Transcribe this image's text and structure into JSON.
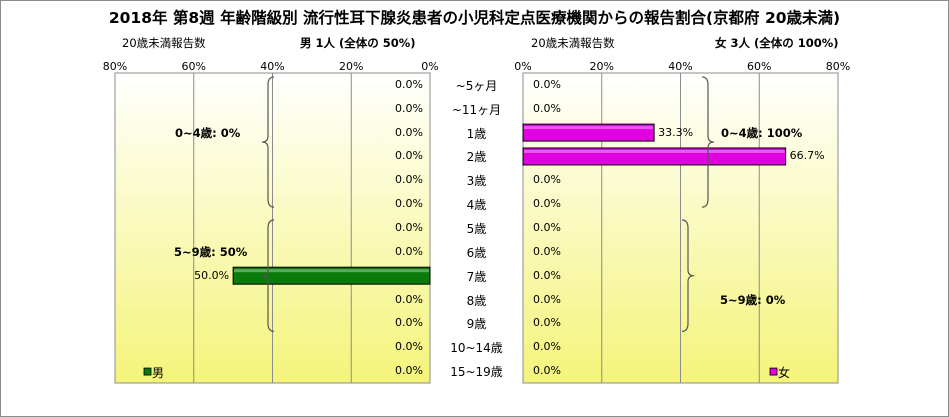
{
  "title": "2018年 第8週 年齢階級別 流行性耳下腺炎患者の小児科定点医療機関からの報告割合(京都府 20歳未満)",
  "colors": {
    "male": "#0a7a0a",
    "female": "#e000e0",
    "plot_bg_top": "#ffffff",
    "plot_bg_bottom": "#f4f47a",
    "frame": "#8c8c8c"
  },
  "chart_data": [
    {
      "type": "bar",
      "orientation": "horizontal",
      "subtitle_left": "20歳未満報告数",
      "subtitle_right": "男 1人 (全体の 50%)",
      "categories": [
        "~5ヶ月",
        "~11ヶ月",
        "1歳",
        "2歳",
        "3歳",
        "4歳",
        "5歳",
        "6歳",
        "7歳",
        "8歳",
        "9歳",
        "10~14歳",
        "15~19歳"
      ],
      "series": [
        {
          "name": "男",
          "values": [
            0,
            0,
            0,
            0,
            0,
            0,
            0,
            0,
            50,
            0,
            0,
            0,
            0
          ]
        }
      ],
      "value_labels": [
        "0.0%",
        "0.0%",
        "0.0%",
        "0.0%",
        "0.0%",
        "0.0%",
        "0.0%",
        "0.0%",
        "50.0%",
        "0.0%",
        "0.0%",
        "0.0%",
        "0.0%"
      ],
      "xlim": [
        80,
        0
      ],
      "xticks": [
        "80%",
        "60%",
        "40%",
        "20%",
        "0%"
      ],
      "grid": true,
      "legend": "bottom-left",
      "group_annotations": [
        {
          "text": "0~4歳: 0%"
        },
        {
          "text": "5~9歳: 50%"
        }
      ]
    },
    {
      "type": "bar",
      "orientation": "horizontal",
      "subtitle_left": "20歳未満報告数",
      "subtitle_right": "女 3人 (全体の 100%)",
      "categories": [
        "~5ヶ月",
        "~11ヶ月",
        "1歳",
        "2歳",
        "3歳",
        "4歳",
        "5歳",
        "6歳",
        "7歳",
        "8歳",
        "9歳",
        "10~14歳",
        "15~19歳"
      ],
      "series": [
        {
          "name": "女",
          "values": [
            0,
            0,
            33.3,
            66.7,
            0,
            0,
            0,
            0,
            0,
            0,
            0,
            0,
            0
          ]
        }
      ],
      "value_labels": [
        "0.0%",
        "0.0%",
        "33.3%",
        "66.7%",
        "0.0%",
        "0.0%",
        "0.0%",
        "0.0%",
        "0.0%",
        "0.0%",
        "0.0%",
        "0.0%",
        "0.0%"
      ],
      "xlim": [
        0,
        80
      ],
      "xticks": [
        "0%",
        "20%",
        "40%",
        "60%",
        "80%"
      ],
      "grid": true,
      "legend": "bottom-right",
      "group_annotations": [
        {
          "text": "0~4歳: 100%"
        },
        {
          "text": "5~9歳: 0%"
        }
      ]
    }
  ]
}
